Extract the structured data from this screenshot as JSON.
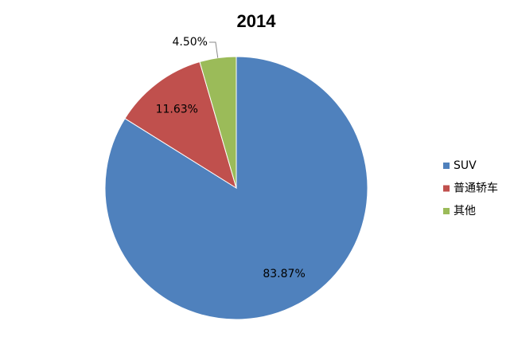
{
  "chart_data": {
    "type": "pie",
    "title": "2014",
    "categories": [
      "SUV",
      "普通轿车",
      "其他"
    ],
    "values": [
      83.87,
      11.63,
      4.5
    ],
    "value_labels": [
      "83.87%",
      "11.63%",
      "4.50%"
    ],
    "colors": [
      "#4f81bd",
      "#c0504d",
      "#9bbb59"
    ],
    "legend": "right"
  }
}
